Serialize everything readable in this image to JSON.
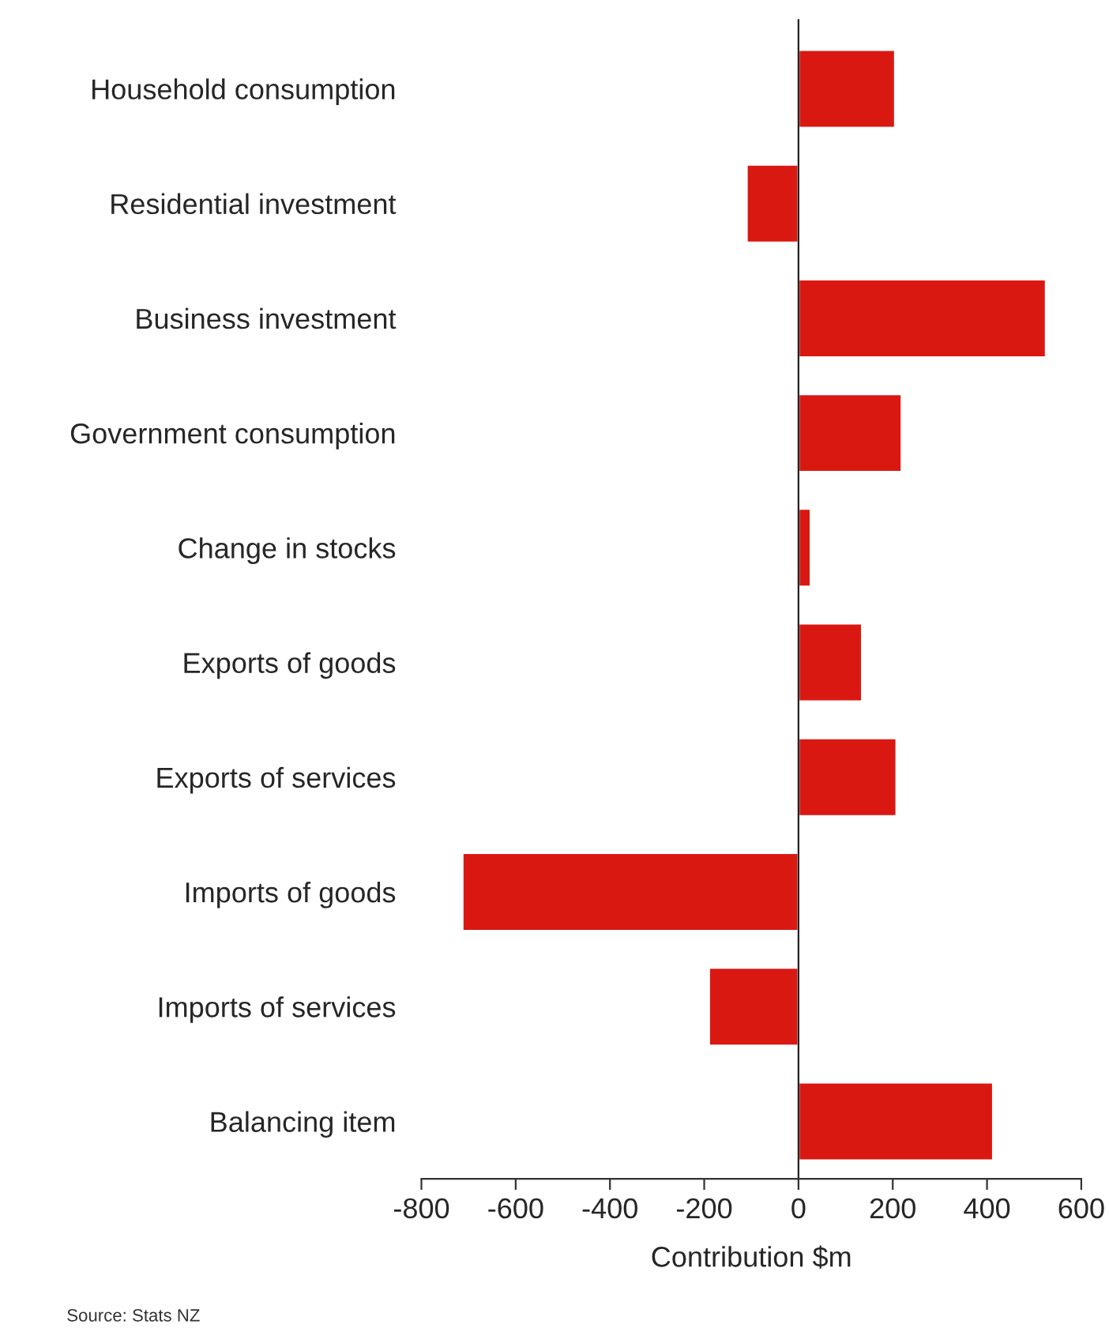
{
  "chart_data": {
    "type": "bar",
    "orientation": "horizontal",
    "categories": [
      "Household consumption",
      "Residential investment",
      "Business investment",
      "Government consumption",
      "Change in stocks",
      "Exports of goods",
      "Exports of services",
      "Imports of goods",
      "Imports of services",
      "Balancing item"
    ],
    "values": [
      205,
      -110,
      525,
      219,
      26,
      135,
      208,
      -713,
      -190,
      413
    ],
    "color": "#da1812",
    "xlim": [
      -800,
      600
    ],
    "xticks": [
      -800,
      -600,
      -400,
      -200,
      0,
      200,
      400,
      600
    ],
    "xlabel": "Contribution $m",
    "annotations": [
      "Source: Stats NZ"
    ]
  }
}
